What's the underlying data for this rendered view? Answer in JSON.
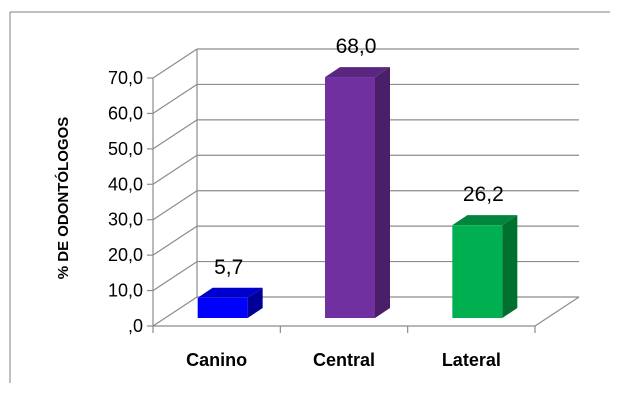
{
  "chart_data": {
    "type": "bar",
    "categories": [
      "Canino",
      "Central",
      "Lateral"
    ],
    "values": [
      5.7,
      68.0,
      26.2
    ],
    "value_labels": [
      "5,7",
      "68,0",
      "26,2"
    ],
    "ylabel": "% DE ODONTÓLOGOS",
    "ylim": [
      0,
      70
    ],
    "yticks": [
      ",0",
      "10,0",
      "20,0",
      "30,0",
      "40,0",
      "50,0",
      "60,0",
      "70,0"
    ],
    "grid": true,
    "legend": "none",
    "three_d": true,
    "colors": {
      "Canino": {
        "front": "#0000ff",
        "top": "#0000cc",
        "side": "#000099"
      },
      "Central": {
        "front": "#7030a0",
        "top": "#5a2780",
        "side": "#4a1f69"
      },
      "Lateral": {
        "front": "#00b050",
        "top": "#00863c",
        "side": "#00702f"
      }
    }
  }
}
